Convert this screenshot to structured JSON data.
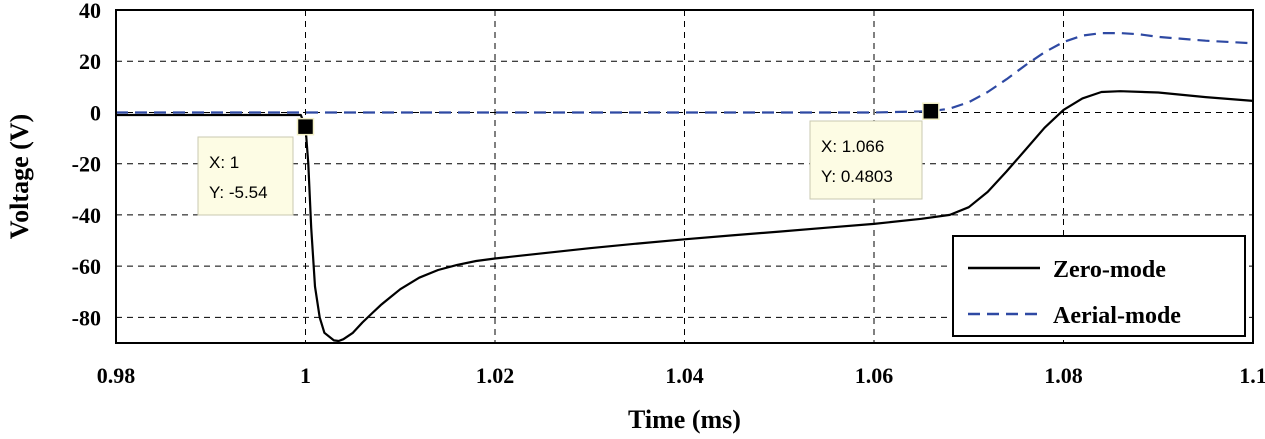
{
  "chart_data": {
    "type": "line",
    "xlabel": "Time (ms)",
    "ylabel": "Voltage (V)",
    "xlim": [
      0.98,
      1.1
    ],
    "ylim": [
      -90,
      40
    ],
    "xticks": [
      0.98,
      1,
      1.02,
      1.04,
      1.06,
      1.08,
      1.1
    ],
    "xtick_labels": [
      "0.98",
      "1",
      "1.02",
      "1.04",
      "1.06",
      "1.08",
      "1.1"
    ],
    "yticks": [
      40,
      20,
      0,
      -20,
      -40,
      -60,
      -80
    ],
    "ytick_labels": [
      "40",
      "20",
      "0",
      "-20",
      "-40",
      "-60",
      "-80"
    ],
    "grid": true,
    "legend_position": "bottom-right",
    "series": [
      {
        "name": "Zero-mode",
        "color": "#000000",
        "dash": "solid",
        "x": [
          0.98,
          0.99,
          0.9995,
          1.0,
          1.0003,
          1.0006,
          1.001,
          1.0015,
          1.002,
          1.003,
          1.0035,
          1.004,
          1.005,
          1.006,
          1.007,
          1.008,
          1.009,
          1.01,
          1.012,
          1.014,
          1.016,
          1.018,
          1.02,
          1.025,
          1.03,
          1.035,
          1.04,
          1.045,
          1.05,
          1.055,
          1.06,
          1.065,
          1.068,
          1.07,
          1.072,
          1.074,
          1.076,
          1.078,
          1.08,
          1.082,
          1.084,
          1.086,
          1.09,
          1.095,
          1.1
        ],
        "y": [
          -1,
          -1,
          -1,
          -5.54,
          -20,
          -45,
          -68,
          -80,
          -86,
          -89,
          -89.2,
          -88.5,
          -86,
          -82,
          -78.5,
          -75,
          -72,
          -69,
          -64.5,
          -61.5,
          -59.5,
          -58,
          -57,
          -55,
          -53,
          -51.2,
          -49.5,
          -48,
          -46.5,
          -45,
          -43.5,
          -41.5,
          -40,
          -37,
          -31,
          -23,
          -14.5,
          -6,
          1,
          5.5,
          8,
          8.3,
          7.8,
          6,
          4.5
        ]
      },
      {
        "name": "Aerial-mode",
        "color": "#2e49a3",
        "dash": "dashed",
        "x": [
          0.98,
          1.0,
          1.02,
          1.04,
          1.06,
          1.066,
          1.068,
          1.07,
          1.072,
          1.074,
          1.076,
          1.078,
          1.08,
          1.082,
          1.084,
          1.086,
          1.088,
          1.09,
          1.095,
          1.1
        ],
        "y": [
          0,
          0,
          0,
          0,
          0,
          0.4803,
          1.5,
          4,
          8,
          13,
          18.5,
          23.5,
          27.5,
          30,
          31,
          31,
          30.5,
          29.5,
          28,
          27
        ]
      }
    ],
    "annotations": [
      {
        "marker_x": 1,
        "marker_y": -5.54,
        "line1": "X: 1",
        "line2": "Y: -5.54"
      },
      {
        "marker_x": 1.066,
        "marker_y": 0.4803,
        "line1": "X: 1.066",
        "line2": "Y: 0.4803"
      }
    ]
  }
}
